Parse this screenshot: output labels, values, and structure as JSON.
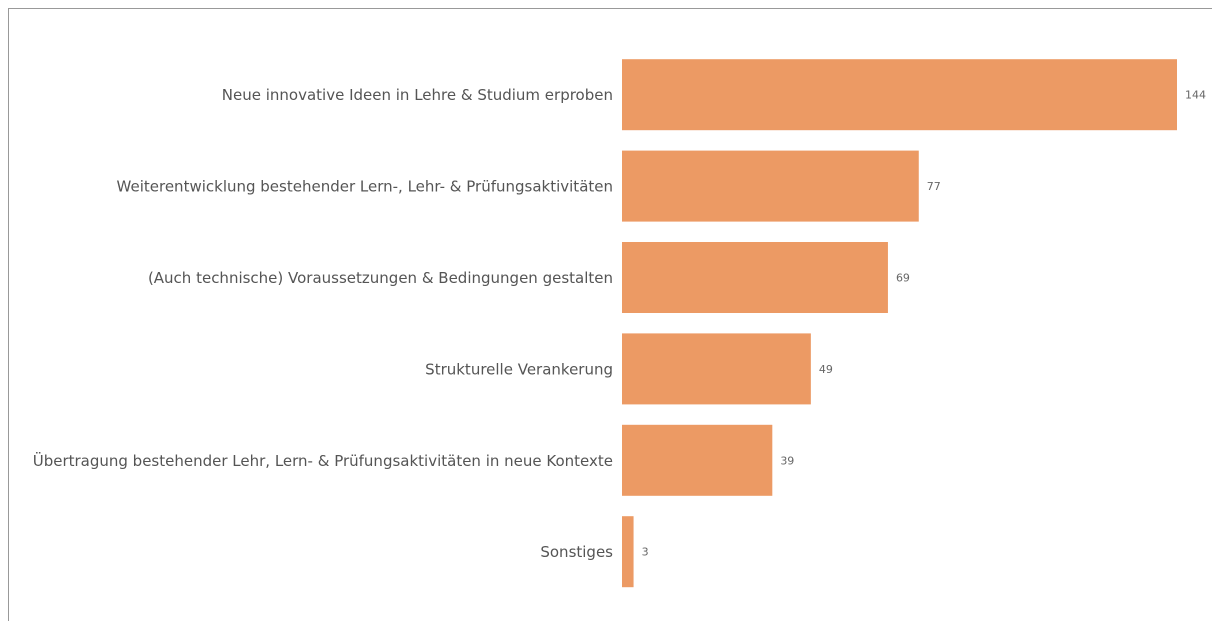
{
  "chart_data": {
    "type": "bar",
    "orientation": "horizontal",
    "categories": [
      "Neue innovative Ideen in Lehre & Studium erproben",
      "Weiterentwicklung bestehender Lern-, Lehr- & Prüfungsaktivitäten",
      "(Auch technische) Voraussetzungen & Bedingungen gestalten",
      "Strukturelle Verankerung",
      "Übertragung bestehender Lehr, Lern- & Prüfungsaktivitäten in neue Kontexte",
      "Sonstiges"
    ],
    "values": [
      144,
      77,
      69,
      49,
      39,
      3
    ],
    "color": "#ec9a64"
  }
}
